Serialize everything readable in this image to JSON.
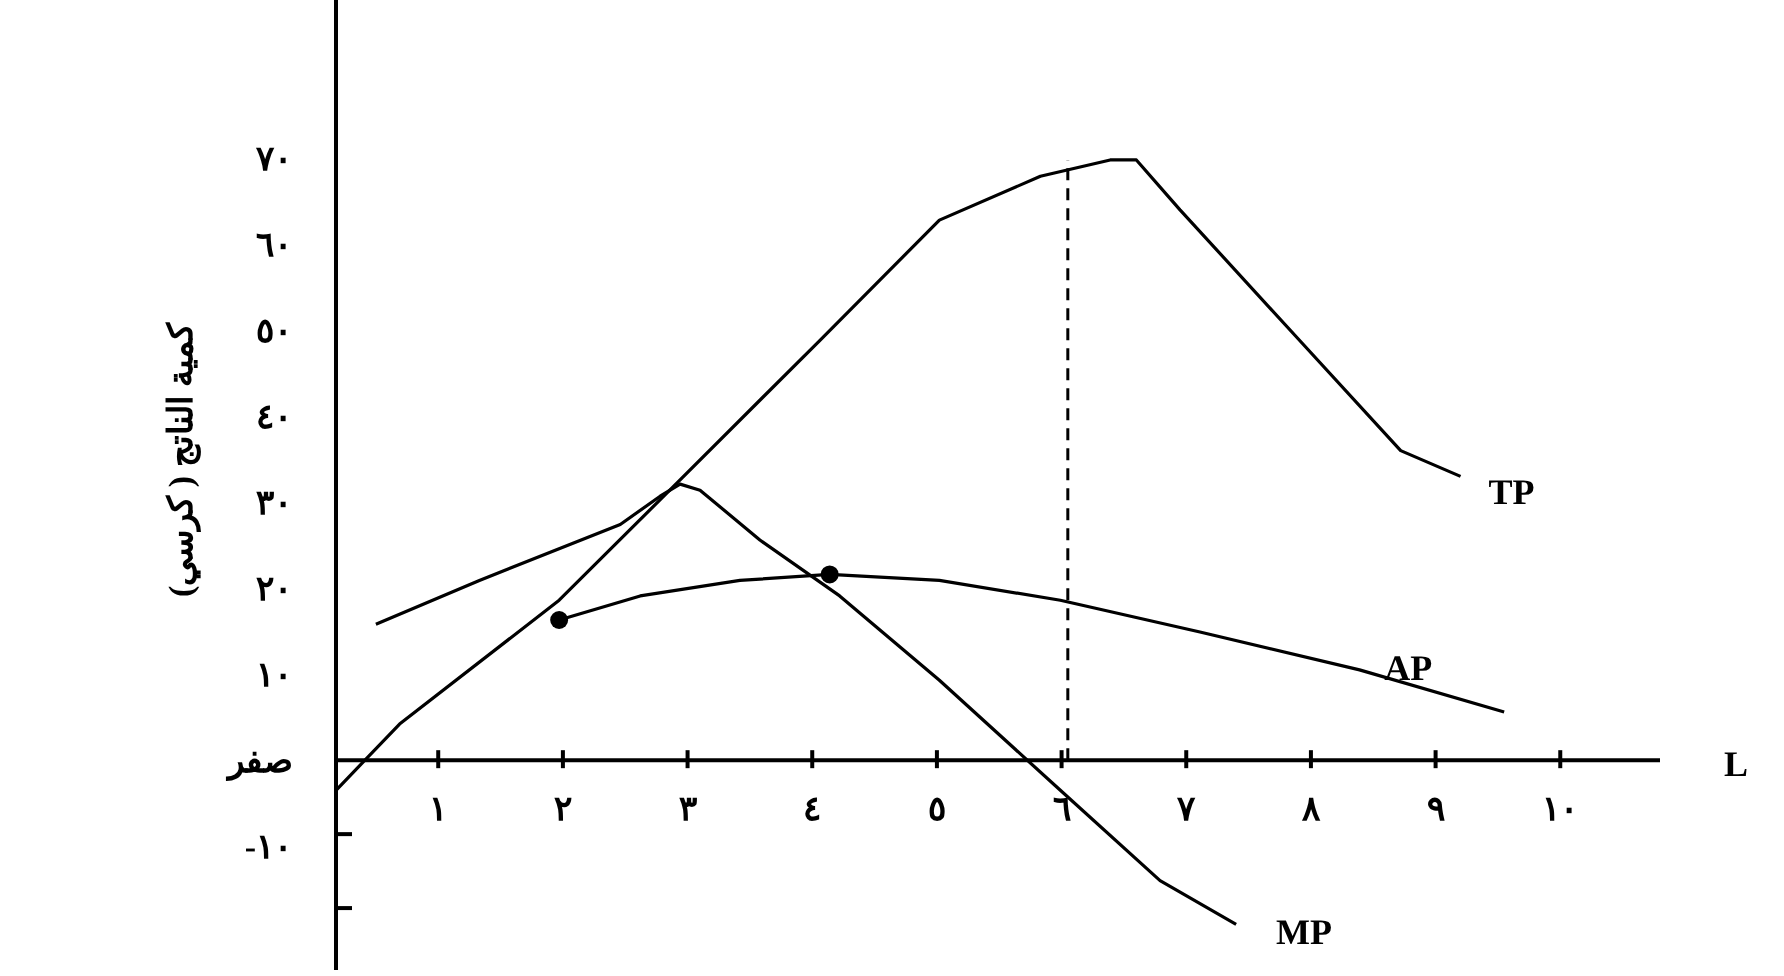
{
  "chart_data": {
    "type": "line",
    "xlabel": "L",
    "ylabel": "كمية الناتج ( كرسي)",
    "xlim": [
      0.18,
      10.8
    ],
    "ylim": [
      -24.4,
      88.4
    ],
    "xticks": [
      {
        "value": 1,
        "label": "١"
      },
      {
        "value": 2,
        "label": "٢"
      },
      {
        "value": 3,
        "label": "٣"
      },
      {
        "value": 4,
        "label": "٤"
      },
      {
        "value": 5,
        "label": "٥"
      },
      {
        "value": 6,
        "label": "٦"
      },
      {
        "value": 7,
        "label": "٧"
      },
      {
        "value": 8,
        "label": "٨"
      },
      {
        "value": 9,
        "label": "٩"
      },
      {
        "value": 10,
        "label": "١٠"
      }
    ],
    "yticks": [
      {
        "value": -17.2,
        "label": null
      },
      {
        "value": -10,
        "label": "-١٠"
      },
      {
        "value": -8.6,
        "label": null
      },
      {
        "value": 0,
        "label": "صفر"
      },
      {
        "value": 10,
        "label": "١٠"
      },
      {
        "value": 20,
        "label": "٢٠"
      },
      {
        "value": 30,
        "label": "٣٠"
      },
      {
        "value": 40,
        "label": "٤٠"
      },
      {
        "value": 50,
        "label": "٥٠"
      },
      {
        "value": 60,
        "label": "٦٠"
      },
      {
        "value": 70,
        "label": "٧٠"
      }
    ],
    "grid": false,
    "legend": false,
    "marker": "none",
    "line_style": "solid",
    "series": [
      {
        "name": "TP",
        "color": "#000000",
        "x": [
          0.18,
          0.69,
          1.97,
          2.94,
          4.06,
          5.02,
          5.83,
          6.39,
          6.6,
          6.95,
          7.91,
          8.72,
          9.2
        ],
        "values": [
          -3.5,
          4.2,
          18.6,
          32.6,
          48.8,
          62.8,
          67.9,
          69.8,
          69.8,
          64.0,
          48.8,
          36.0,
          33.0
        ]
      },
      {
        "name": "MP",
        "color": "#000000",
        "x": [
          0.5,
          1.33,
          2.46,
          2.78,
          2.94,
          3.1,
          3.58,
          4.22,
          5.02,
          5.99,
          6.79,
          7.4
        ],
        "values": [
          15.8,
          20.9,
          27.4,
          30.7,
          32.1,
          31.4,
          25.6,
          19.1,
          9.3,
          -3.5,
          -14.0,
          -19.1
        ]
      },
      {
        "name": "AP",
        "color": "#000000",
        "x": [
          1.97,
          2.62,
          3.42,
          4.14,
          5.02,
          5.99,
          7.11,
          8.39,
          9.55
        ],
        "values": [
          16.3,
          19.1,
          20.9,
          21.6,
          20.9,
          18.6,
          14.9,
          10.5,
          5.6
        ]
      },
      {
        "type": "scatter",
        "color": "#000000",
        "marker": "circle",
        "x": [
          1.97,
          4.14
        ],
        "values": [
          16.3,
          21.6
        ]
      }
    ],
    "ref_lines": [
      {
        "axis": "x",
        "value": 6.05,
        "line_style": "dashed",
        "color": "#000000"
      }
    ]
  }
}
